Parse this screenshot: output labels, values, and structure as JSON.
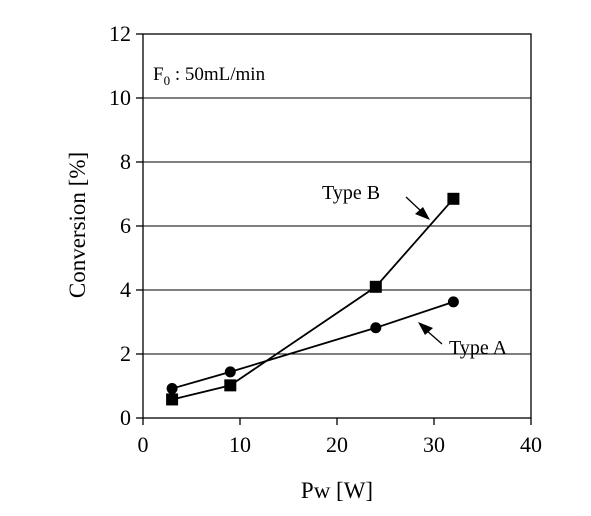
{
  "chart_data": {
    "type": "line",
    "title": "",
    "xlabel": "Pw [W]",
    "ylabel": "Conversion [%]",
    "xlim": [
      0,
      40
    ],
    "ylim": [
      0,
      12
    ],
    "xticks": [
      0,
      10,
      20,
      30,
      40
    ],
    "yticks": [
      0,
      2,
      4,
      6,
      8,
      10,
      12
    ],
    "grid": "horizontal",
    "annotation": {
      "main": "F",
      "subscript": "0",
      "rest": " : 50mL/min"
    },
    "series": [
      {
        "name": "Type A",
        "marker": "circle",
        "x": [
          3,
          9,
          24,
          32
        ],
        "y": [
          0.92,
          1.44,
          2.82,
          3.63
        ]
      },
      {
        "name": "Type B",
        "marker": "square",
        "x": [
          3,
          9,
          24,
          32
        ],
        "y": [
          0.58,
          1.02,
          4.1,
          6.85
        ]
      }
    ],
    "colors": {
      "line": "#000000",
      "grid": "#000000",
      "background": "#ffffff"
    }
  }
}
